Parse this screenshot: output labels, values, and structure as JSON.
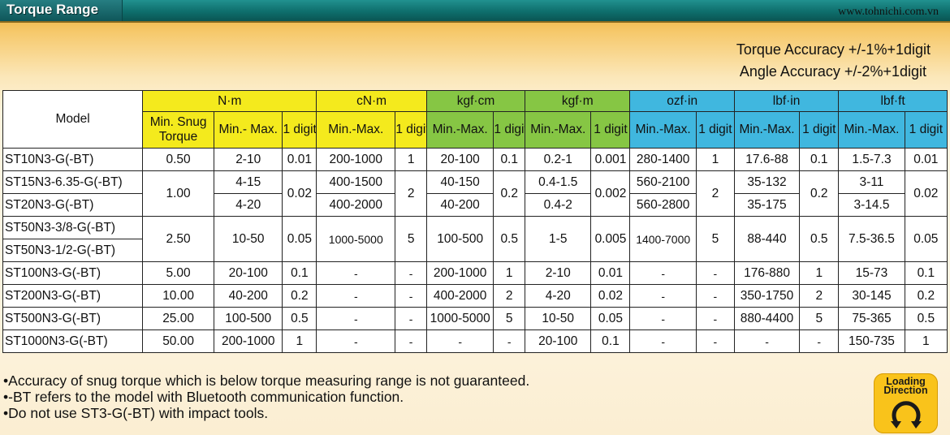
{
  "header": {
    "title": "Torque Range",
    "website": "www.tohnichi.com.vn"
  },
  "accuracy": {
    "torque": "Torque Accuracy +/-1%+1digit",
    "angle": "Angle  Accuracy +/-2%+1digit"
  },
  "table": {
    "model_header": "Model",
    "groups": [
      "N·m",
      "cN·m",
      "kgf·cm",
      "kgf·m",
      "ozf·in",
      "lbf·in",
      "lbf·ft"
    ],
    "subheaders": {
      "min_snug_torque": "Min. Snug Torque",
      "min_max_nm": "Min.- Max.",
      "min_max": "Min.-Max.",
      "digit": "1 digit"
    },
    "rows": [
      {
        "model": "ST10N3-G(-BT)",
        "snug": "0.50",
        "nm": "2-10",
        "nm_d": "0.01",
        "cnm": "200-1000",
        "cnm_d": "1",
        "kgfcm": "20-100",
        "kgfcm_d": "0.1",
        "kgfm": "0.2-1",
        "kgfm_d": "0.001",
        "ozfin": "280-1400",
        "ozfin_d": "1",
        "lbfin": "17.6-88",
        "lbfin_d": "0.1",
        "lbfft": "1.5-7.3",
        "lbfft_d": "0.01"
      },
      {
        "model": "ST15N3-6.35-G(-BT)",
        "snug": "1.00",
        "nm": "4-15",
        "nm_d": "0.02",
        "cnm": "400-1500",
        "cnm_d": "2",
        "kgfcm": "40-150",
        "kgfcm_d": "0.2",
        "kgfm": "0.4-1.5",
        "kgfm_d": "0.002",
        "ozfin": "560-2100",
        "ozfin_d": "2",
        "lbfin": "35-132",
        "lbfin_d": "0.2",
        "lbfft": "3-11",
        "lbfft_d": "0.02"
      },
      {
        "model": "ST20N3-G(-BT)",
        "nm": "4-20",
        "cnm": "400-2000",
        "kgfcm": "40-200",
        "kgfm": "0.4-2",
        "ozfin": "560-2800",
        "lbfin": "35-175",
        "lbfft": "3-14.5"
      },
      {
        "model": "ST50N3-3/8-G(-BT)",
        "snug": "2.50",
        "nm": "10-50",
        "nm_d": "0.05",
        "cnm": "1000-5000",
        "cnm_d": "5",
        "kgfcm": "100-500",
        "kgfcm_d": "0.5",
        "kgfm": "1-5",
        "kgfm_d": "0.005",
        "ozfin": "1400-7000",
        "ozfin_d": "5",
        "lbfin": "88-440",
        "lbfin_d": "0.5",
        "lbfft": "7.5-36.5",
        "lbfft_d": "0.05"
      },
      {
        "model": "ST50N3-1/2-G(-BT)"
      },
      {
        "model": "ST100N3-G(-BT)",
        "snug": "5.00",
        "nm": "20-100",
        "nm_d": "0.1",
        "cnm": "-",
        "cnm_d": "-",
        "kgfcm": "200-1000",
        "kgfcm_d": "1",
        "kgfm": "2-10",
        "kgfm_d": "0.01",
        "ozfin": "-",
        "ozfin_d": "-",
        "lbfin": "176-880",
        "lbfin_d": "1",
        "lbfft": "15-73",
        "lbfft_d": "0.1"
      },
      {
        "model": "ST200N3-G(-BT)",
        "snug": "10.00",
        "nm": "40-200",
        "nm_d": "0.2",
        "cnm": "-",
        "cnm_d": "-",
        "kgfcm": "400-2000",
        "kgfcm_d": "2",
        "kgfm": "4-20",
        "kgfm_d": "0.02",
        "ozfin": "-",
        "ozfin_d": "-",
        "lbfin": "350-1750",
        "lbfin_d": "2",
        "lbfft": "30-145",
        "lbfft_d": "0.2"
      },
      {
        "model": "ST500N3-G(-BT)",
        "snug": "25.00",
        "nm": "100-500",
        "nm_d": "0.5",
        "cnm": "-",
        "cnm_d": "-",
        "kgfcm": "1000-5000",
        "kgfcm_d": "5",
        "kgfm": "10-50",
        "kgfm_d": "0.05",
        "ozfin": "-",
        "ozfin_d": "-",
        "lbfin": "880-4400",
        "lbfin_d": "5",
        "lbfft": "75-365",
        "lbfft_d": "0.5"
      },
      {
        "model": "ST1000N3-G(-BT)",
        "snug": "50.00",
        "nm": "200-1000",
        "nm_d": "1",
        "cnm": "-",
        "cnm_d": "-",
        "kgfcm": "-",
        "kgfcm_d": "-",
        "kgfm": "20-100",
        "kgfm_d": "0.1",
        "ozfin": "-",
        "ozfin_d": "-",
        "lbfin": "-",
        "lbfin_d": "-",
        "lbfft": "150-735",
        "lbfft_d": "1"
      }
    ]
  },
  "notes": [
    "Accuracy of snug torque which is below torque measuring range is not guaranteed.",
    "-BT refers to the model with Bluetooth communication function.",
    "Do not use ST3-G(-BT) with impact tools."
  ],
  "badge": {
    "line1": "Loading",
    "line2": "Direction",
    "icon": "rotation-arrow-icon"
  },
  "colors": {
    "title_bar": "#0e6e6c",
    "yellow_header": "#f4ea1d",
    "green_header": "#86c644",
    "blue_header": "#40b7df",
    "badge": "#f9c31b"
  }
}
